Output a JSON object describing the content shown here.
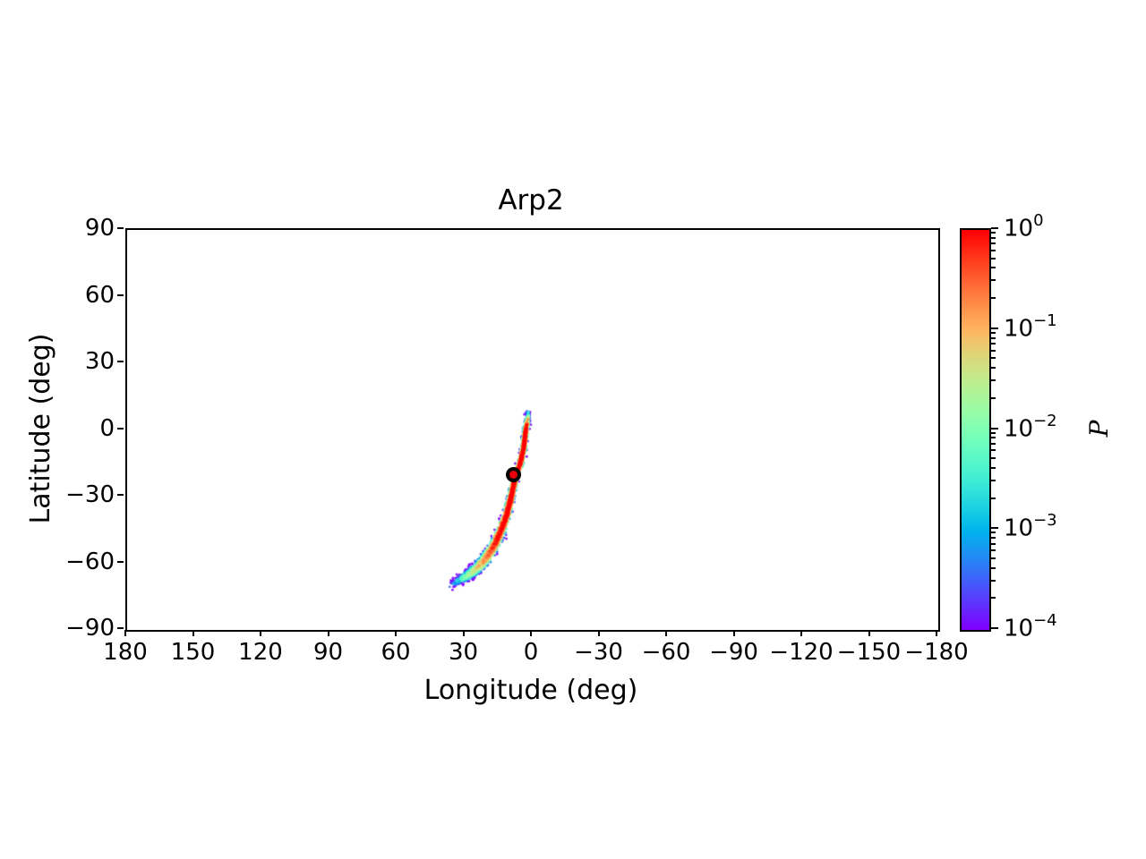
{
  "chart_data": {
    "type": "scatter",
    "title": "Arp2",
    "xlabel": "Longitude (deg)",
    "ylabel": "Latitude (deg)",
    "xlim": [
      180,
      -180
    ],
    "ylim": [
      -90,
      90
    ],
    "grid": false,
    "x_ticks": [
      {
        "value": 180,
        "label": "180"
      },
      {
        "value": 150,
        "label": "150"
      },
      {
        "value": 120,
        "label": "120"
      },
      {
        "value": 90,
        "label": "90"
      },
      {
        "value": 60,
        "label": "60"
      },
      {
        "value": 30,
        "label": "30"
      },
      {
        "value": 0,
        "label": "0"
      },
      {
        "value": -30,
        "label": "−30"
      },
      {
        "value": -60,
        "label": "−60"
      },
      {
        "value": -90,
        "label": "−90"
      },
      {
        "value": -120,
        "label": "−120"
      },
      {
        "value": -150,
        "label": "−150"
      },
      {
        "value": -180,
        "label": "−180"
      }
    ],
    "y_ticks": [
      {
        "value": 90,
        "label": "90"
      },
      {
        "value": 60,
        "label": "60"
      },
      {
        "value": 30,
        "label": "30"
      },
      {
        "value": 0,
        "label": "0"
      },
      {
        "value": -30,
        "label": "−30"
      },
      {
        "value": -60,
        "label": "−60"
      },
      {
        "value": -90,
        "label": "−90"
      }
    ],
    "colorbar": {
      "label": "P",
      "scale": "log",
      "vmin": 0.0001,
      "vmax": 1,
      "colormap": "rainbow",
      "tick_mantissa": "10",
      "tick_exponents": [
        0,
        -1,
        -2,
        -3,
        -4
      ],
      "tick_exponents_display": [
        "0",
        "−1",
        "−2",
        "−3",
        "−4"
      ],
      "tick_labels": [
        "10⁰",
        "10⁻¹",
        "10⁻²",
        "10⁻³",
        "10⁻⁴"
      ]
    },
    "progenitor_marker": {
      "lon": 7.7,
      "lat": -21.1,
      "face_color": "#e8000b",
      "edge_color": "#000000"
    },
    "stream": {
      "description": "curved tidal-stream probability density, red core fading to violet fringe",
      "n_points": 3200,
      "seed": 42,
      "point_radius_px": 1.4,
      "spine": [
        {
          "lon": 2.0,
          "lat": 7.8,
          "sigma_deg": 0.3,
          "amp": 0.0006
        },
        {
          "lon": 2.2,
          "lat": 5.5,
          "sigma_deg": 0.3,
          "amp": 0.006
        },
        {
          "lon": 2.5,
          "lat": 3.5,
          "sigma_deg": 0.32,
          "amp": 0.06
        },
        {
          "lon": 2.8,
          "lat": 1.5,
          "sigma_deg": 0.35,
          "amp": 0.5
        },
        {
          "lon": 3.2,
          "lat": -1.0,
          "sigma_deg": 0.35,
          "amp": 1.0
        },
        {
          "lon": 4.0,
          "lat": -8.0,
          "sigma_deg": 0.36,
          "amp": 1.0
        },
        {
          "lon": 5.5,
          "lat": -15.0,
          "sigma_deg": 0.38,
          "amp": 1.0
        },
        {
          "lon": 7.7,
          "lat": -21.1,
          "sigma_deg": 0.4,
          "amp": 1.0
        },
        {
          "lon": 9.5,
          "lat": -30.0,
          "sigma_deg": 0.45,
          "amp": 1.0
        },
        {
          "lon": 11.5,
          "lat": -38.0,
          "sigma_deg": 0.52,
          "amp": 0.9
        },
        {
          "lon": 14.0,
          "lat": -45.0,
          "sigma_deg": 0.6,
          "amp": 0.7
        },
        {
          "lon": 17.0,
          "lat": -52.0,
          "sigma_deg": 0.68,
          "amp": 0.35
        },
        {
          "lon": 20.5,
          "lat": -57.5,
          "sigma_deg": 0.75,
          "amp": 0.15
        },
        {
          "lon": 24.0,
          "lat": -61.5,
          "sigma_deg": 0.78,
          "amp": 0.05
        },
        {
          "lon": 27.5,
          "lat": -64.5,
          "sigma_deg": 0.78,
          "amp": 0.015
        },
        {
          "lon": 30.5,
          "lat": -66.5,
          "sigma_deg": 0.72,
          "amp": 0.004
        },
        {
          "lon": 33.0,
          "lat": -68.0,
          "sigma_deg": 0.65,
          "amp": 0.0012
        },
        {
          "lon": 35.5,
          "lat": -69.5,
          "sigma_deg": 0.6,
          "amp": 0.0004
        }
      ]
    }
  }
}
